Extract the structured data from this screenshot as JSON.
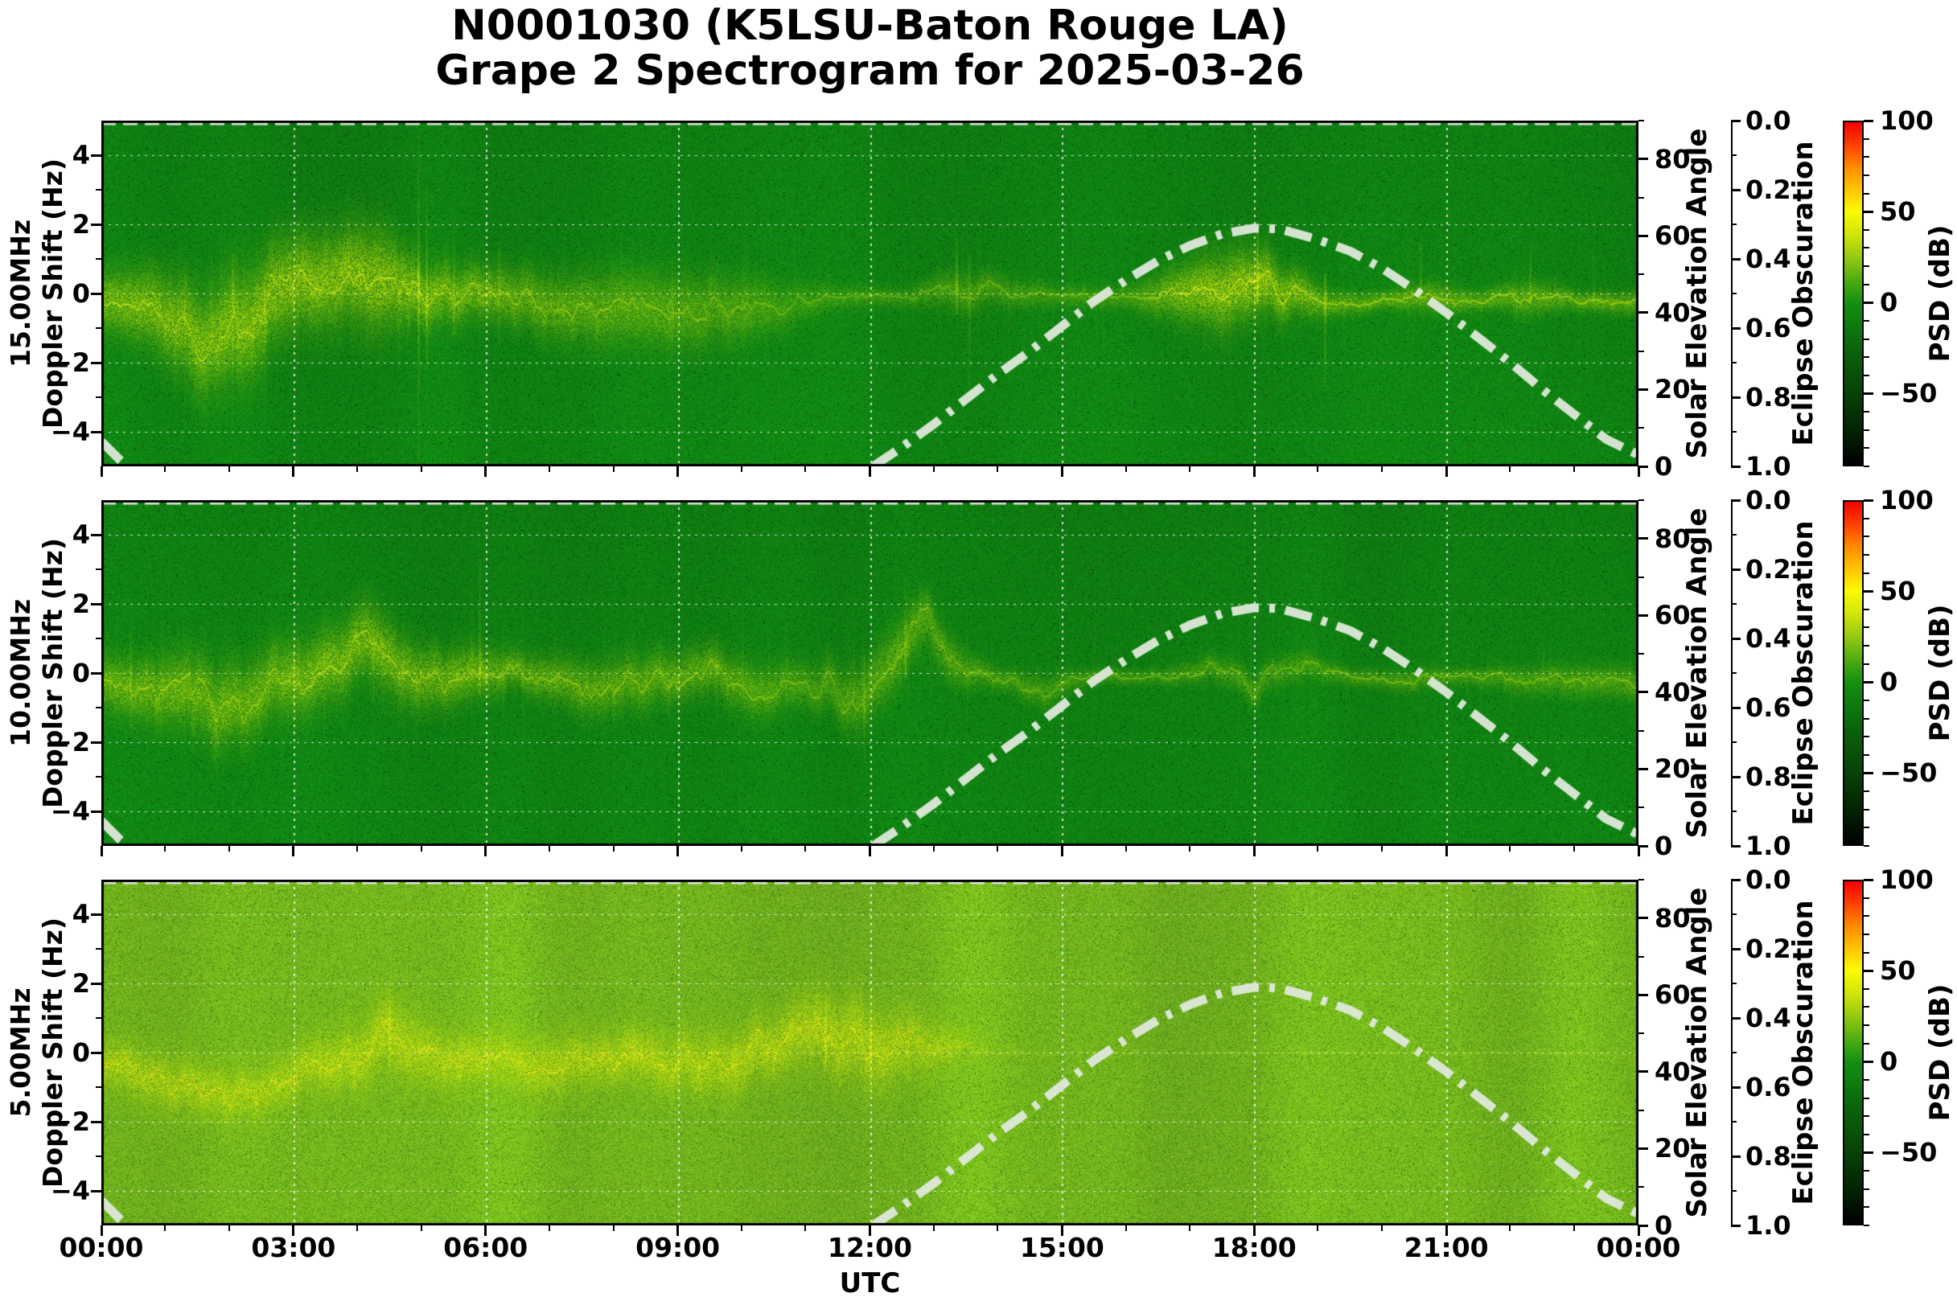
{
  "chart_data": {
    "type": "heatmap",
    "subtype": "doppler-spectrogram",
    "title_line1": "N0001030 (K5LSU-Baton Rouge LA)",
    "title_line2": "Grape 2 Spectrogram for 2025-03-26",
    "station": "N0001030",
    "station_description": "K5LSU-Baton Rouge LA",
    "date": "2025-03-26",
    "xlabel": "UTC",
    "x_range_hours": [
      0,
      24
    ],
    "x_tick_hours": [
      0,
      3,
      6,
      9,
      12,
      15,
      18,
      21,
      24
    ],
    "x_tick_labels": [
      "00:00",
      "03:00",
      "06:00",
      "09:00",
      "12:00",
      "15:00",
      "18:00",
      "21:00",
      "00:00"
    ],
    "doppler_axis": {
      "label_line2": "Doppler Shift (Hz)",
      "ylim": [
        -5,
        5
      ],
      "tick_values": [
        4,
        2,
        0,
        -2,
        -4
      ],
      "tick_labels": [
        "4",
        "2",
        "0",
        "−2",
        "−4"
      ],
      "minor_tick_values": [
        3,
        1,
        -1,
        -3
      ]
    },
    "solar_axis": {
      "label": "Solar Elevation Angle",
      "range": [
        0,
        90
      ],
      "tick_values": [
        80,
        60,
        40,
        20,
        0
      ],
      "tick_labels": [
        "80",
        "60",
        "40",
        "20",
        "0"
      ],
      "minor_tick_values": [
        90,
        70,
        50,
        30,
        10
      ]
    },
    "eclipse_axis": {
      "label": "Eclipse Obscuration",
      "range_top_to_bottom": [
        0.0,
        1.0
      ],
      "tick_values": [
        0.0,
        0.2,
        0.4,
        0.6,
        0.8,
        1.0
      ],
      "tick_labels": [
        "0.0",
        "0.2",
        "0.4",
        "0.6",
        "0.8",
        "1.0"
      ],
      "minor_tick_values": [
        0.1,
        0.3,
        0.5,
        0.7,
        0.9
      ]
    },
    "colorbar": {
      "label": "PSD (dB)",
      "range_top_to_bottom": [
        100,
        -90
      ],
      "tick_values": [
        100,
        50,
        0,
        -50
      ],
      "tick_labels": [
        "100",
        "50",
        "0",
        "−50"
      ],
      "minor_step": 10,
      "gradient_stops": [
        [
          0.0,
          "#f60000"
        ],
        [
          0.07,
          "#fe4400"
        ],
        [
          0.13,
          "#ff8a00"
        ],
        [
          0.2,
          "#ffc800"
        ],
        [
          0.26,
          "#fbfb00"
        ],
        [
          0.33,
          "#cfe408"
        ],
        [
          0.4,
          "#8fc613"
        ],
        [
          0.47,
          "#46a810"
        ],
        [
          0.53,
          "#128f12"
        ],
        [
          0.66,
          "#0b640b"
        ],
        [
          0.79,
          "#074207"
        ],
        [
          0.9,
          "#032303"
        ],
        [
          1.0,
          "#000000"
        ]
      ]
    },
    "solar_elevation_curve": {
      "style": "dash-dot, thick, pale white-green",
      "hours": [
        12.05,
        12.5,
        13,
        13.5,
        14,
        14.5,
        15,
        15.5,
        16,
        16.5,
        17,
        17.5,
        18,
        18.4,
        19,
        19.5,
        20,
        20.5,
        21,
        21.5,
        22,
        22.5,
        23,
        23.5,
        24
      ],
      "elevation_deg": [
        0,
        5,
        11,
        17.5,
        24,
        30,
        36.5,
        43,
        48.5,
        53.5,
        57.5,
        60.5,
        62,
        61.8,
        59,
        56,
        51.5,
        46,
        40,
        33.5,
        27,
        20,
        13.5,
        7,
        3
      ],
      "morning_hours": [
        0,
        0.15,
        0.3,
        0.42
      ],
      "morning_elevation_deg": [
        6.5,
        4,
        1.5,
        0
      ]
    },
    "eclipse_obscuration": {
      "constant_value": 0.0,
      "note": "no eclipse; dashed line drawn along top edge of each panel"
    },
    "panels": [
      {
        "frequency": "15.00MHz",
        "ylabel_line1": "15.00MHz",
        "ylabel_line2": "Doppler Shift (Hz)",
        "description": "Strong wandering doppler trace ±2 Hz with deep downward scatter 00:00-06:00, moderate fuzz 07:00-10:30, quiet thin line 11:00-16:00, bright blob at 0 Hz 16:30-19:00 with spike to +2, thin line slightly below 0 until 24:00",
        "trace": {
          "hours": [
            0,
            0.8,
            1.5,
            2.2,
            3.0,
            3.8,
            4.3,
            5.0,
            6.0,
            7.0,
            8.0,
            9.0,
            10.0,
            10.8,
            11.5,
            12.5,
            13.3,
            14.0,
            15.0,
            16.0,
            16.8,
            17.5,
            18.1,
            18.8,
            19.2,
            20.0,
            20.8,
            21.5,
            22.3,
            23.0,
            24.0
          ],
          "center_hz": [
            -0.1,
            -0.4,
            -1.2,
            -0.8,
            0.2,
            0.8,
            0.4,
            0.0,
            0.05,
            -0.3,
            -0.5,
            -0.45,
            -0.5,
            -0.3,
            -0.1,
            -0.1,
            0.1,
            0.1,
            -0.1,
            -0.1,
            0.0,
            0.1,
            0.25,
            -0.1,
            -0.3,
            -0.2,
            -0.1,
            -0.2,
            -0.1,
            -0.2,
            -0.3
          ],
          "halfwidth_hz": [
            0.55,
            0.75,
            0.95,
            1.05,
            0.9,
            0.9,
            1.0,
            0.6,
            0.5,
            0.6,
            0.7,
            0.7,
            0.6,
            0.4,
            0.22,
            0.18,
            0.35,
            0.3,
            0.18,
            0.22,
            0.5,
            0.75,
            0.6,
            0.4,
            0.25,
            0.16,
            0.3,
            0.18,
            0.32,
            0.18,
            0.22
          ],
          "intensity": [
            0.85,
            0.9,
            0.9,
            0.95,
            0.95,
            0.95,
            0.95,
            0.9,
            0.8,
            0.7,
            0.7,
            0.65,
            0.6,
            0.45,
            0.45,
            0.4,
            0.55,
            0.5,
            0.45,
            0.5,
            0.9,
            1.0,
            1.0,
            0.85,
            0.7,
            0.7,
            0.72,
            0.68,
            0.72,
            0.7,
            0.7
          ],
          "wander_hz": [
            0.35,
            0.55,
            0.85,
            0.95,
            0.8,
            0.7,
            0.9,
            0.45,
            0.3,
            0.45,
            0.55,
            0.5,
            0.45,
            0.3,
            0.12,
            0.1,
            0.35,
            0.25,
            0.1,
            0.1,
            0.2,
            0.3,
            0.5,
            0.3,
            0.18,
            0.1,
            0.25,
            0.12,
            0.25,
            0.12,
            0.18
          ]
        },
        "streaks": [
          [
            4.95,
            4.8,
            -4.8,
            0.5
          ],
          [
            5.07,
            3.0,
            -2.2,
            0.4
          ],
          [
            5.5,
            2.2,
            -1.2,
            0.25
          ],
          [
            2.05,
            1.2,
            -4.5,
            0.22
          ],
          [
            2.55,
            0.6,
            -3.8,
            0.18
          ],
          [
            1.3,
            0.8,
            -4.2,
            0.15
          ],
          [
            13.35,
            1.6,
            -0.6,
            0.42
          ],
          [
            13.55,
            1.2,
            -3.0,
            0.3
          ],
          [
            18.05,
            2.1,
            -0.3,
            0.45
          ],
          [
            19.1,
            0.6,
            -2.7,
            0.45
          ],
          [
            20.6,
            1.5,
            -0.2,
            0.3
          ],
          [
            22.3,
            1.4,
            -0.3,
            0.28
          ],
          [
            6.2,
            1.5,
            -1.5,
            0.2
          ],
          [
            8.9,
            1.0,
            -2.0,
            0.15
          ],
          [
            23.3,
            1.1,
            -0.4,
            0.2
          ]
        ],
        "render": {
          "seed": 11,
          "bg": "dark",
          "echo": true,
          "band_amp": 0.04,
          "orange_core": false
        }
      },
      {
        "frequency": "10.00MHz",
        "ylabel_line1": "10.00MHz",
        "ylabel_line2": "Doppler Shift (Hz)",
        "description": "Thin wandering trace 0 to -1.5 Hz with excursions to -2.7 before 06:00, peak +1.7 near 04:20, structure rising to +2.5 near 12:50, quiet thin line slightly below 0 from 14:00 to 24:00",
        "trace": {
          "hours": [
            0,
            1.0,
            1.8,
            2.6,
            3.4,
            4.2,
            5.0,
            5.8,
            6.5,
            7.5,
            8.5,
            9.3,
            10.2,
            11.0,
            11.8,
            12.4,
            12.9,
            13.3,
            14.0,
            14.7,
            15.5,
            16.5,
            17.3,
            18.0,
            18.7,
            19.5,
            20.5,
            21.3,
            22.2,
            23.0,
            24.0
          ],
          "center_hz": [
            -0.3,
            -0.6,
            -1.0,
            -0.3,
            0.3,
            0.9,
            -0.2,
            0.1,
            0.1,
            -0.4,
            -0.2,
            0.2,
            -0.4,
            -0.3,
            -0.6,
            0.6,
            1.5,
            0.2,
            -0.1,
            -0.5,
            -0.1,
            -0.1,
            0.2,
            -0.4,
            0.3,
            -0.15,
            -0.2,
            -0.1,
            -0.2,
            -0.25,
            -0.3
          ],
          "halfwidth_hz": [
            0.5,
            0.65,
            0.8,
            0.7,
            0.7,
            0.7,
            0.6,
            0.5,
            0.35,
            0.5,
            0.5,
            0.45,
            0.5,
            0.4,
            0.6,
            0.6,
            0.5,
            0.4,
            0.2,
            0.3,
            0.15,
            0.15,
            0.25,
            0.3,
            0.25,
            0.15,
            0.2,
            0.15,
            0.25,
            0.3,
            0.3
          ],
          "intensity": [
            0.75,
            0.8,
            0.8,
            0.8,
            0.85,
            0.85,
            0.8,
            0.8,
            0.7,
            0.7,
            0.7,
            0.7,
            0.65,
            0.55,
            0.6,
            0.7,
            0.6,
            0.6,
            0.5,
            0.5,
            0.45,
            0.45,
            0.5,
            0.5,
            0.5,
            0.5,
            0.55,
            0.5,
            0.55,
            0.6,
            0.6
          ],
          "wander_hz": [
            0.4,
            0.6,
            0.8,
            0.6,
            0.7,
            0.6,
            0.5,
            0.6,
            0.3,
            0.5,
            0.5,
            0.4,
            0.5,
            0.4,
            0.7,
            0.8,
            0.8,
            0.4,
            0.15,
            0.4,
            0.1,
            0.1,
            0.3,
            0.4,
            0.3,
            0.1,
            0.2,
            0.1,
            0.25,
            0.3,
            0.3
          ]
        },
        "streaks": [
          [
            5.9,
            3.3,
            -0.6,
            0.38
          ],
          [
            12.55,
            2.8,
            -0.2,
            0.3
          ],
          [
            0.45,
            1.2,
            -1.6,
            0.2
          ],
          [
            3.0,
            1.0,
            -2.0,
            0.18
          ],
          [
            9.6,
            1.2,
            -1.5,
            0.15
          ],
          [
            11.9,
            0.5,
            -2.6,
            0.25
          ],
          [
            4.25,
            1.3,
            -0.8,
            0.2
          ],
          [
            22.5,
            0.8,
            -0.6,
            0.15
          ]
        ],
        "render": {
          "seed": 22,
          "bg": "dark",
          "echo": false,
          "band_amp": 0.04,
          "orange_core": false
        }
      },
      {
        "frequency": "5.00MHz",
        "ylabel_line1": "5.00MHz",
        "ylabel_line2": "Doppler Shift (Hz)",
        "description": "Bright speckled yellow-green background; strong yellow-orange trace between +0.5 and -1.5 Hz from 00:00 to ~13:30 with peaks to +2 near 04:30 and 11:15; trace fades into background after ~14:00",
        "trace": {
          "hours": [
            0,
            0.8,
            1.6,
            2.4,
            3.2,
            4.0,
            4.5,
            5.2,
            6.0,
            6.8,
            7.6,
            8.3,
            9.0,
            9.8,
            10.5,
            11.2,
            11.8,
            12.4,
            13.0,
            13.5,
            14.0,
            15.0,
            17.0,
            20.0,
            22.0,
            24.0
          ],
          "center_hz": [
            -0.3,
            -0.9,
            -1.0,
            -1.3,
            -0.4,
            -0.1,
            0.6,
            -0.3,
            -0.2,
            -0.3,
            -0.3,
            0.0,
            -0.3,
            -0.4,
            0.2,
            0.8,
            0.4,
            0.1,
            0.2,
            0.3,
            0.0,
            0.0,
            0.0,
            0.0,
            0.0,
            -0.1
          ],
          "halfwidth_hz": [
            0.5,
            0.6,
            0.6,
            0.6,
            0.6,
            0.7,
            0.85,
            0.7,
            0.6,
            0.7,
            0.6,
            0.6,
            0.7,
            0.7,
            0.7,
            0.85,
            0.95,
            0.8,
            0.6,
            0.4,
            0.2,
            0.15,
            0.12,
            0.12,
            0.12,
            0.15
          ],
          "intensity": [
            0.9,
            0.9,
            0.9,
            0.85,
            0.9,
            0.95,
            0.95,
            0.9,
            0.9,
            0.9,
            0.9,
            0.95,
            0.9,
            0.9,
            0.95,
            0.95,
            0.95,
            0.9,
            0.8,
            0.6,
            0.25,
            0.12,
            0.1,
            0.1,
            0.1,
            0.12
          ],
          "wander_hz": [
            0.4,
            0.5,
            0.6,
            0.6,
            0.5,
            0.5,
            0.8,
            0.5,
            0.4,
            0.5,
            0.4,
            0.45,
            0.5,
            0.6,
            0.6,
            0.9,
            0.9,
            0.6,
            0.5,
            0.3,
            0.1,
            0.05,
            0.04,
            0.04,
            0.04,
            0.05
          ]
        },
        "streaks": [
          [
            4.5,
            2.2,
            -0.6,
            0.35
          ],
          [
            11.3,
            2.3,
            -0.4,
            0.38
          ],
          [
            12.0,
            1.9,
            -1.3,
            0.32
          ],
          [
            8.3,
            1.3,
            -1.1,
            0.28
          ],
          [
            2.4,
            0.3,
            -1.8,
            0.25
          ],
          [
            9.9,
            0.5,
            -2.6,
            0.22
          ],
          [
            12.6,
            1.5,
            -0.9,
            0.25
          ],
          [
            5.6,
            1.0,
            -1.2,
            0.2
          ]
        ],
        "render": {
          "seed": 33,
          "bg": "bright",
          "echo": false,
          "band_amp": 0.07,
          "orange_core": true
        }
      }
    ],
    "style_colors": {
      "curve_white": "#dfe9db",
      "grid_white": "#ffffff",
      "trace_yellow": "#fcfc0c",
      "trace_core": "#fffc1e",
      "trace_orange": "#ff8c00",
      "trace_red": "#e63000",
      "spine_black": "#000000",
      "figure_bg": "#ffffff"
    }
  }
}
